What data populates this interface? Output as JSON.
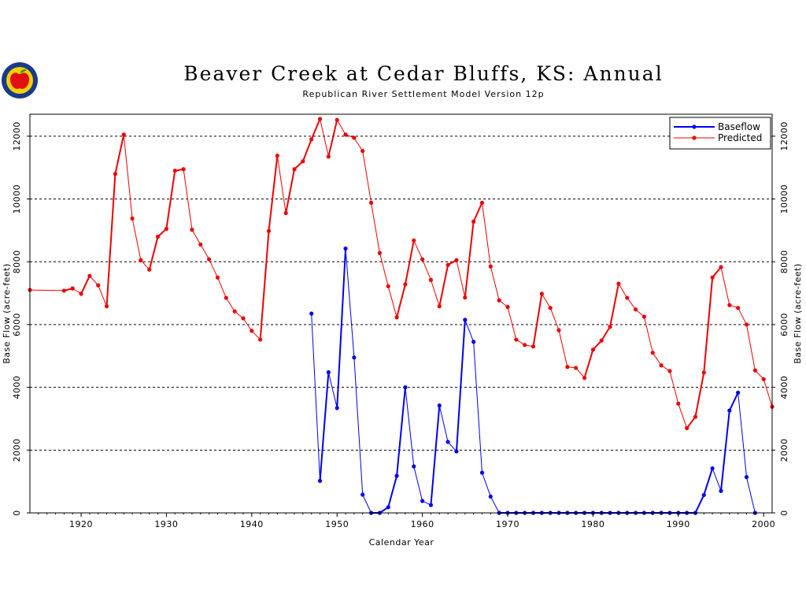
{
  "logo": {
    "icon": "apple-logo-icon",
    "colors": {
      "ring": "#1a3a8a",
      "fill": "#f5d000",
      "apple": "#e01010",
      "leaf": "#2a9a2a"
    }
  },
  "colors": {
    "baseflow": "#0000ee",
    "predicted": "#ee0000",
    "grid": "#000000"
  },
  "chart_data": {
    "type": "line",
    "title": "Beaver Creek at Cedar Bluffs, KS: Annual",
    "subtitle": "Republican River Settlement Model Version 12p",
    "xlabel": "Calendar Year",
    "ylabel": "Base Flow (acre-feet)",
    "ylabel_right": "Base Flow (acre-feet)",
    "xlim": [
      1914,
      2001
    ],
    "ylim": [
      0,
      12700
    ],
    "x_ticks": [
      1920,
      1930,
      1940,
      1950,
      1960,
      1970,
      1980,
      1990,
      2000
    ],
    "y_ticks": [
      0,
      2000,
      4000,
      6000,
      8000,
      10000,
      12000
    ],
    "grid": "horizontal-dashed",
    "legend_position": "top-right",
    "series": [
      {
        "name": "Baseflow",
        "color": "#0000ee",
        "x": [
          1947,
          1948,
          1949,
          1950,
          1951,
          1952,
          1953,
          1954,
          1955,
          1956,
          1957,
          1958,
          1959,
          1960,
          1961,
          1962,
          1963,
          1964,
          1965,
          1966,
          1967,
          1968,
          1969,
          1970,
          1971,
          1972,
          1973,
          1974,
          1975,
          1976,
          1977,
          1978,
          1979,
          1980,
          1981,
          1982,
          1983,
          1984,
          1985,
          1986,
          1987,
          1988,
          1989,
          1990,
          1991,
          1992,
          1993,
          1994,
          1995,
          1996,
          1997,
          1998,
          1999
        ],
        "values": [
          6350,
          1020,
          4480,
          3340,
          8420,
          4950,
          580,
          0,
          0,
          180,
          1180,
          4000,
          1480,
          380,
          250,
          3420,
          2260,
          1960,
          6150,
          5450,
          1280,
          520,
          0,
          0,
          0,
          0,
          0,
          0,
          0,
          0,
          0,
          0,
          0,
          0,
          0,
          0,
          0,
          0,
          0,
          0,
          0,
          0,
          0,
          0,
          0,
          0,
          570,
          1420,
          700,
          3260,
          3830,
          1140,
          0
        ]
      },
      {
        "name": "Predicted",
        "color": "#ee0000",
        "x": [
          1914,
          1918,
          1919,
          1920,
          1921,
          1922,
          1923,
          1924,
          1925,
          1926,
          1927,
          1928,
          1929,
          1930,
          1931,
          1932,
          1933,
          1934,
          1935,
          1936,
          1937,
          1938,
          1939,
          1940,
          1941,
          1942,
          1943,
          1944,
          1945,
          1946,
          1947,
          1948,
          1949,
          1950,
          1951,
          1952,
          1953,
          1954,
          1955,
          1956,
          1957,
          1958,
          1959,
          1960,
          1961,
          1962,
          1963,
          1964,
          1965,
          1966,
          1967,
          1968,
          1969,
          1970,
          1971,
          1972,
          1973,
          1974,
          1975,
          1976,
          1977,
          1978,
          1979,
          1980,
          1981,
          1982,
          1983,
          1984,
          1985,
          1986,
          1987,
          1988,
          1989,
          1990,
          1991,
          1992,
          1993,
          1994,
          1995,
          1996,
          1997,
          1998,
          1999,
          2000,
          2001
        ],
        "values": [
          7100,
          7080,
          7150,
          6980,
          7550,
          7250,
          6580,
          10800,
          12050,
          9380,
          8050,
          7750,
          8800,
          9050,
          10900,
          10950,
          9020,
          8550,
          8080,
          7500,
          6850,
          6420,
          6200,
          5800,
          5520,
          8980,
          11380,
          9550,
          10950,
          11200,
          11900,
          12550,
          11350,
          12520,
          12050,
          11950,
          11530,
          9880,
          8280,
          7220,
          6230,
          7280,
          8680,
          8080,
          7420,
          6580,
          7900,
          8050,
          6860,
          9280,
          9880,
          7850,
          6770,
          6560,
          5520,
          5350,
          5300,
          6980,
          6530,
          5820,
          4650,
          4620,
          4300,
          5200,
          5490,
          5930,
          7300,
          6850,
          6480,
          6250,
          5100,
          4700,
          4520,
          3480,
          2700,
          3060,
          4470,
          7500,
          7830,
          6620,
          6530,
          6000,
          4540,
          4260,
          3380
        ]
      }
    ]
  }
}
